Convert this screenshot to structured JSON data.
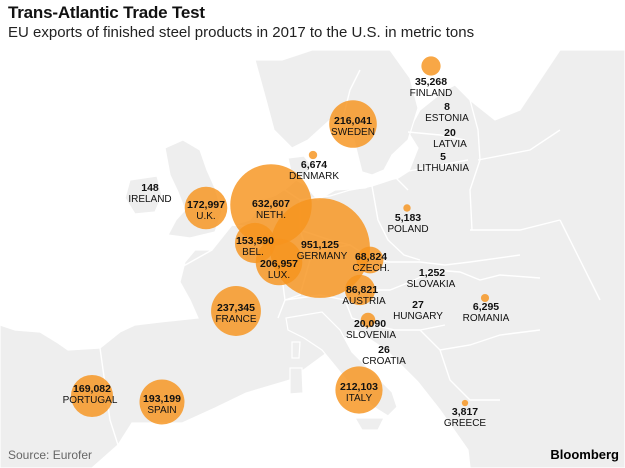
{
  "header": {
    "title": "Trans-Atlantic Trade Test",
    "subtitle": "EU exports of finished steel products in 2017 to the U.S. in metric tons"
  },
  "footer": {
    "source": "Source: Eurofer",
    "brand": "Bloomberg"
  },
  "colors": {
    "bubble": "#f7941d",
    "land": "#eeeeee",
    "borders": "#ffffff",
    "sea": "#ffffff"
  },
  "map_data": {
    "type": "proportional-symbol-map",
    "unit": "metric tons",
    "countries": [
      {
        "name": "FINLAND",
        "value": 35268,
        "value_label": "35,268"
      },
      {
        "name": "SWEDEN",
        "value": 216041,
        "value_label": "216,041"
      },
      {
        "name": "ESTONIA",
        "value": 8,
        "value_label": "8"
      },
      {
        "name": "LATVIA",
        "value": 20,
        "value_label": "20"
      },
      {
        "name": "LITHUANIA",
        "value": 5,
        "value_label": "5"
      },
      {
        "name": "DENMARK",
        "value": 6674,
        "value_label": "6,674"
      },
      {
        "name": "IRELAND",
        "value": 148,
        "value_label": "148"
      },
      {
        "name": "U.K.",
        "value": 172997,
        "value_label": "172,997"
      },
      {
        "name": "NETH.",
        "value": 632607,
        "value_label": "632,607"
      },
      {
        "name": "POLAND",
        "value": 5183,
        "value_label": "5,183"
      },
      {
        "name": "BEL.",
        "value": 153590,
        "value_label": "153,590"
      },
      {
        "name": "GERMANY",
        "value": 951125,
        "value_label": "951,125"
      },
      {
        "name": "LUX.",
        "value": 206957,
        "value_label": "206,957"
      },
      {
        "name": "CZECH.",
        "value": 68824,
        "value_label": "68,824"
      },
      {
        "name": "SLOVAKIA",
        "value": 1252,
        "value_label": "1,252"
      },
      {
        "name": "FRANCE",
        "value": 237345,
        "value_label": "237,345"
      },
      {
        "name": "AUSTRIA",
        "value": 86821,
        "value_label": "86,821"
      },
      {
        "name": "HUNGARY",
        "value": 27,
        "value_label": "27"
      },
      {
        "name": "ROMANIA",
        "value": 6295,
        "value_label": "6,295"
      },
      {
        "name": "SLOVENIA",
        "value": 20090,
        "value_label": "20,090"
      },
      {
        "name": "CROATIA",
        "value": 26,
        "value_label": "26"
      },
      {
        "name": "PORTUGAL",
        "value": 169082,
        "value_label": "169,082"
      },
      {
        "name": "SPAIN",
        "value": 193199,
        "value_label": "193,199"
      },
      {
        "name": "ITALY",
        "value": 212103,
        "value_label": "212,103"
      },
      {
        "name": "GREECE",
        "value": 3817,
        "value_label": "3,817"
      }
    ]
  }
}
